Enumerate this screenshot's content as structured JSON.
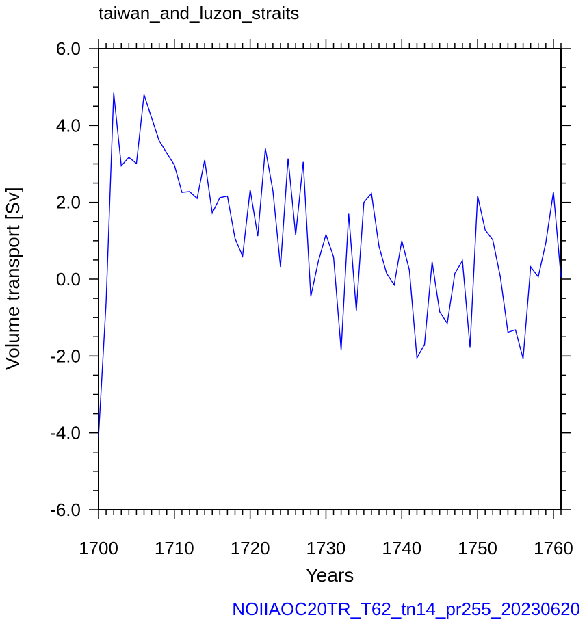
{
  "chart_data": {
    "type": "line",
    "title": "taiwan_and_luzon_straits",
    "xlabel": "Years",
    "ylabel": "Volume transport [Sv]",
    "caption": "NOIIAOC20TR_T62_tn14_pr255_20230620",
    "xlim": [
      1700,
      1761
    ],
    "ylim": [
      -6.0,
      6.0
    ],
    "x_major_ticks": [
      1700,
      1710,
      1720,
      1730,
      1740,
      1750,
      1760
    ],
    "x_tick_labels": [
      "1700",
      "1710",
      "1720",
      "1730",
      "1740",
      "1750",
      "1760"
    ],
    "y_major_ticks": [
      -6,
      -4,
      -2,
      0,
      2,
      4,
      6
    ],
    "y_tick_labels": [
      "-6.0",
      "-4.0",
      "-2.0",
      "0.0",
      "2.0",
      "4.0",
      "6.0"
    ],
    "grid": false,
    "line_color": "#0000ff",
    "series": [
      {
        "x": [
          1700,
          1701,
          1702,
          1703,
          1704,
          1705,
          1706,
          1707,
          1708,
          1709,
          1710,
          1711,
          1712,
          1713,
          1714,
          1715,
          1716,
          1717,
          1718,
          1719,
          1720,
          1721,
          1722,
          1723,
          1724,
          1725,
          1726,
          1727,
          1728,
          1729,
          1730,
          1731,
          1732,
          1733,
          1734,
          1735,
          1736,
          1737,
          1738,
          1739,
          1740,
          1741,
          1742,
          1743,
          1744,
          1745,
          1746,
          1747,
          1748,
          1749,
          1750,
          1751,
          1752,
          1753,
          1754,
          1755,
          1756,
          1757,
          1758,
          1759,
          1760,
          1761
        ],
        "values": [
          -4.1,
          -0.6,
          4.85,
          2.95,
          3.17,
          3.01,
          4.8,
          4.2,
          3.6,
          3.28,
          2.97,
          2.26,
          2.28,
          2.1,
          3.1,
          1.72,
          2.12,
          2.16,
          1.06,
          0.6,
          2.33,
          1.12,
          3.4,
          2.3,
          0.32,
          3.14,
          1.15,
          3.05,
          -0.45,
          0.47,
          1.16,
          0.58,
          -1.85,
          1.7,
          -0.82,
          2.0,
          2.23,
          0.85,
          0.15,
          -0.15,
          1.0,
          0.24,
          -2.05,
          -1.7,
          0.45,
          -0.85,
          -1.15,
          0.15,
          0.48,
          -1.77,
          2.17,
          1.28,
          1.02,
          0.06,
          -1.38,
          -1.32,
          -2.07,
          0.32,
          0.06,
          0.95,
          2.27,
          0.05
        ]
      }
    ]
  }
}
